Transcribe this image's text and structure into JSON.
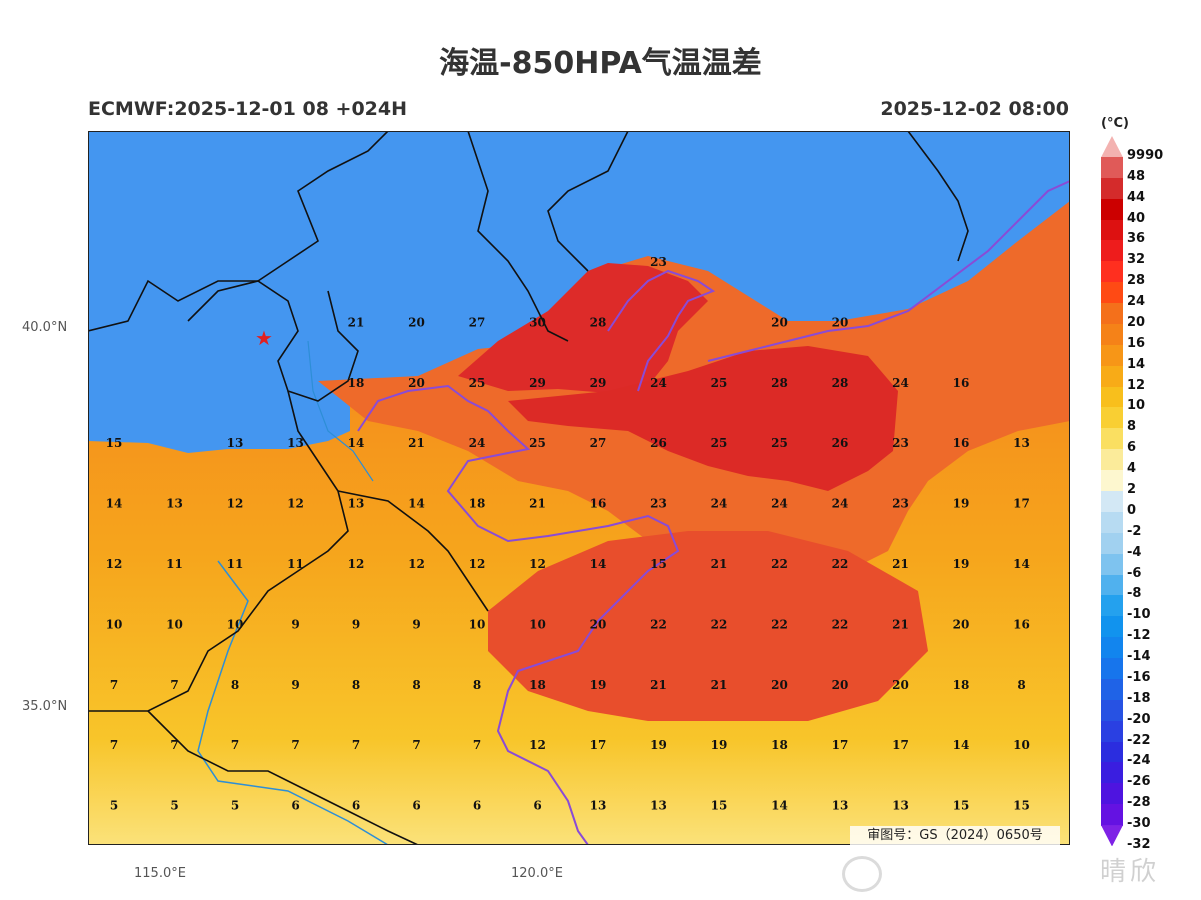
{
  "title": "海温-850HPA气温温差",
  "model_run": "ECMWF:2025-12-01 08 +024H",
  "valid_time": "2025-12-02 08:00",
  "axes": {
    "lat_labels": [
      "40.0°N",
      "35.0°N"
    ],
    "lon_labels": [
      "115.0°E",
      "120.0°E"
    ]
  },
  "colorbar": {
    "unit": "(°C)",
    "labels": [
      "9990",
      "48",
      "44",
      "40",
      "36",
      "32",
      "28",
      "24",
      "20",
      "16",
      "14",
      "12",
      "10",
      "8",
      "6",
      "4",
      "2",
      "0",
      "-2",
      "-4",
      "-6",
      "-8",
      "-10",
      "-12",
      "-14",
      "-16",
      "-18",
      "-20",
      "-22",
      "-24",
      "-26",
      "-28",
      "-30",
      "-32"
    ],
    "colors": [
      "#f3b2b0",
      "#e05a58",
      "#d42b2b",
      "#cc0000",
      "#dd1111",
      "#ee1c1c",
      "#ff2f1f",
      "#ff4a14",
      "#f4701b",
      "#f58218",
      "#f79617",
      "#f8ab17",
      "#f8bf1c",
      "#f9cf33",
      "#fadf61",
      "#fbeb9a",
      "#fdf7cf",
      "#d3e8f5",
      "#b7dbf2",
      "#a1d1f0",
      "#7ec3ef",
      "#50b1ee",
      "#24a1ee",
      "#1193ee",
      "#1285ee",
      "#1775ec",
      "#1f63e7",
      "#2752e3",
      "#2a40e2",
      "#2b2ddf",
      "#3a1ee0",
      "#4e14e0",
      "#6412e2",
      "#7e22e6"
    ]
  },
  "grid_values": {
    "rows": [
      [
        "",
        "",
        "",
        "",
        "",
        "",
        "",
        "",
        "",
        "23",
        "",
        "",
        "",
        "",
        "",
        ""
      ],
      [
        "",
        "",
        "",
        "",
        "21",
        "20",
        "27",
        "30",
        "28",
        "",
        "",
        "20",
        "20",
        "",
        "",
        ""
      ],
      [
        "",
        "",
        "",
        "",
        "18",
        "20",
        "25",
        "29",
        "29",
        "24",
        "25",
        "28",
        "28",
        "24",
        "16",
        ""
      ],
      [
        "15",
        "",
        "13",
        "13",
        "14",
        "21",
        "24",
        "25",
        "27",
        "26",
        "25",
        "25",
        "26",
        "23",
        "16",
        "13"
      ],
      [
        "14",
        "13",
        "12",
        "12",
        "13",
        "14",
        "18",
        "21",
        "16",
        "23",
        "24",
        "24",
        "24",
        "23",
        "19",
        "17"
      ],
      [
        "12",
        "11",
        "11",
        "11",
        "12",
        "12",
        "12",
        "12",
        "14",
        "15",
        "21",
        "22",
        "22",
        "21",
        "19",
        "14"
      ],
      [
        "10",
        "10",
        "10",
        "9",
        "9",
        "9",
        "10",
        "10",
        "20",
        "22",
        "22",
        "22",
        "22",
        "21",
        "20",
        "16"
      ],
      [
        "7",
        "7",
        "8",
        "9",
        "8",
        "8",
        "8",
        "18",
        "19",
        "21",
        "21",
        "20",
        "20",
        "20",
        "18",
        "8"
      ],
      [
        "7",
        "7",
        "7",
        "7",
        "7",
        "7",
        "7",
        "12",
        "17",
        "19",
        "19",
        "18",
        "17",
        "17",
        "14",
        "10"
      ],
      [
        "5",
        "5",
        "5",
        "6",
        "6",
        "6",
        "6",
        "6",
        "13",
        "13",
        "15",
        "14",
        "13",
        "13",
        "15",
        "15"
      ]
    ]
  },
  "city_marker": "★",
  "map_approval": "审图号：GS（2024）0650号",
  "watermark": "晴欣"
}
